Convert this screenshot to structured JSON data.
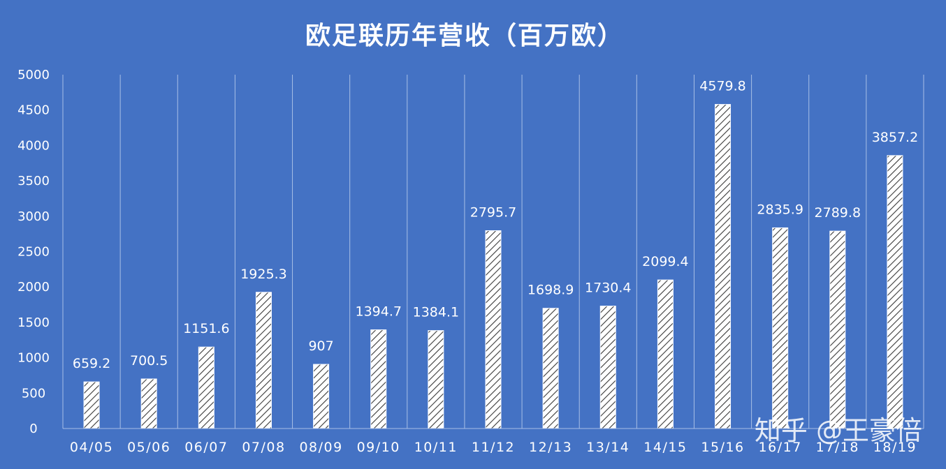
{
  "page": {
    "watermark": "知乎 @王豪倍"
  },
  "colors": {
    "background": "#4472c4",
    "bar_fill": "#ffffff",
    "bar_hatch": "#3a3a3a",
    "gridline": "#a8bfe6",
    "label_box": "#4472c4",
    "text": "#ffffff"
  },
  "chart_data": {
    "type": "bar",
    "title": "欧足联历年营收（百万欧）",
    "xlabel": "",
    "ylabel": "",
    "categories": [
      "04/05",
      "05/06",
      "06/07",
      "07/08",
      "08/09",
      "09/10",
      "10/11",
      "11/12",
      "12/13",
      "13/14",
      "14/15",
      "15/16",
      "16/17",
      "17/18",
      "18/19"
    ],
    "values": [
      659.2,
      700.5,
      1151.6,
      1925.3,
      907,
      1394.7,
      1384.1,
      2795.7,
      1698.9,
      1730.4,
      2099.4,
      4579.8,
      2835.9,
      2789.8,
      3857.2
    ],
    "value_labels": [
      "659.2",
      "700.5",
      "1151.6",
      "1925.3",
      "907",
      "1394.7",
      "1384.1",
      "2795.7",
      "1698.9",
      "1730.4",
      "2099.4",
      "4579.8",
      "2835.9",
      "2789.8",
      "3857.2"
    ],
    "ylim": [
      0,
      5000
    ],
    "yticks": [
      "0",
      "500",
      "1000",
      "1500",
      "2000",
      "2500",
      "3000",
      "3500",
      "4000",
      "4500",
      "5000"
    ],
    "grid": "vertical",
    "legend": "none",
    "bar_pattern": "diagonal-hatch"
  }
}
